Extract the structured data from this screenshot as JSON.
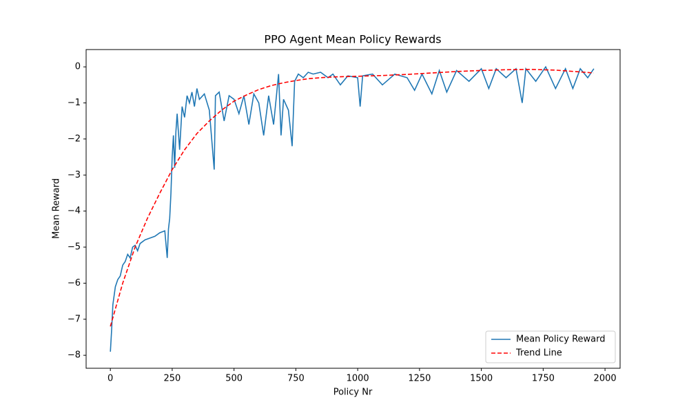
{
  "chart_data": {
    "type": "line",
    "title": "PPO Agent Mean Policy Rewards",
    "xlabel": "Policy Nr",
    "ylabel": "Mean Reward",
    "xlim": [
      -98,
      2061
    ],
    "ylim": [
      -8.36,
      0.48
    ],
    "xticks": [
      0,
      250,
      500,
      750,
      1000,
      1250,
      1500,
      1750,
      2000
    ],
    "yticks": [
      {
        "value": -8,
        "label": "−8"
      },
      {
        "value": -7,
        "label": "−7"
      },
      {
        "value": -6,
        "label": "−6"
      },
      {
        "value": -5,
        "label": "−5"
      },
      {
        "value": -4,
        "label": "−4"
      },
      {
        "value": -3,
        "label": "−3"
      },
      {
        "value": -2,
        "label": "−2"
      },
      {
        "value": -1,
        "label": "−1"
      },
      0
    ],
    "legend": "lower right",
    "series": [
      {
        "name": "Mean Policy Reward",
        "color": "#1f77b4",
        "style": "solid",
        "x": [
          0,
          5,
          10,
          20,
          30,
          40,
          50,
          60,
          70,
          80,
          90,
          100,
          110,
          120,
          140,
          160,
          180,
          200,
          220,
          230,
          235,
          240,
          245,
          250,
          255,
          260,
          265,
          270,
          280,
          290,
          300,
          310,
          320,
          330,
          340,
          350,
          360,
          380,
          400,
          420,
          425,
          440,
          460,
          480,
          500,
          520,
          540,
          560,
          580,
          600,
          620,
          640,
          660,
          680,
          690,
          700,
          720,
          735,
          745,
          760,
          780,
          800,
          820,
          850,
          880,
          900,
          930,
          960,
          1000,
          1010,
          1020,
          1060,
          1100,
          1150,
          1200,
          1230,
          1260,
          1300,
          1330,
          1360,
          1400,
          1450,
          1500,
          1530,
          1560,
          1600,
          1640,
          1665,
          1680,
          1720,
          1760,
          1800,
          1840,
          1870,
          1900,
          1930,
          1955
        ],
        "values": [
          -7.9,
          -7.3,
          -6.6,
          -6.1,
          -5.9,
          -5.8,
          -5.5,
          -5.4,
          -5.2,
          -5.3,
          -5.0,
          -4.95,
          -5.1,
          -4.9,
          -4.8,
          -4.75,
          -4.7,
          -4.6,
          -4.55,
          -5.3,
          -4.5,
          -4.2,
          -3.5,
          -2.5,
          -1.9,
          -2.8,
          -1.8,
          -1.3,
          -2.3,
          -1.1,
          -1.4,
          -0.8,
          -1.0,
          -0.7,
          -1.1,
          -0.6,
          -0.9,
          -0.75,
          -1.2,
          -2.85,
          -0.8,
          -0.7,
          -1.5,
          -0.8,
          -0.9,
          -1.3,
          -0.8,
          -1.6,
          -0.75,
          -1.0,
          -1.9,
          -0.8,
          -1.6,
          -0.2,
          -1.9,
          -0.9,
          -1.2,
          -2.2,
          -0.4,
          -0.2,
          -0.3,
          -0.15,
          -0.2,
          -0.15,
          -0.3,
          -0.2,
          -0.5,
          -0.25,
          -0.3,
          -1.1,
          -0.25,
          -0.2,
          -0.5,
          -0.2,
          -0.3,
          -0.65,
          -0.2,
          -0.75,
          -0.1,
          -0.7,
          -0.1,
          -0.4,
          -0.05,
          -0.6,
          -0.05,
          -0.3,
          -0.05,
          -1.0,
          -0.05,
          -0.4,
          0.0,
          -0.6,
          -0.05,
          -0.6,
          -0.05,
          -0.3,
          -0.05
        ]
      },
      {
        "name": "Trend Line",
        "color": "#ff0000",
        "style": "dashed",
        "x": [
          0,
          50,
          100,
          150,
          200,
          250,
          300,
          350,
          400,
          450,
          500,
          550,
          600,
          650,
          700,
          750,
          800,
          850,
          900,
          1000,
          1100,
          1200,
          1300,
          1400,
          1500,
          1600,
          1700,
          1800,
          1900,
          1955
        ],
        "values": [
          -7.2,
          -6.0,
          -5.0,
          -4.2,
          -3.5,
          -2.85,
          -2.3,
          -1.85,
          -1.5,
          -1.2,
          -0.95,
          -0.78,
          -0.63,
          -0.52,
          -0.44,
          -0.38,
          -0.33,
          -0.3,
          -0.28,
          -0.26,
          -0.24,
          -0.21,
          -0.17,
          -0.13,
          -0.1,
          -0.08,
          -0.07,
          -0.09,
          -0.14,
          -0.17
        ]
      }
    ]
  }
}
